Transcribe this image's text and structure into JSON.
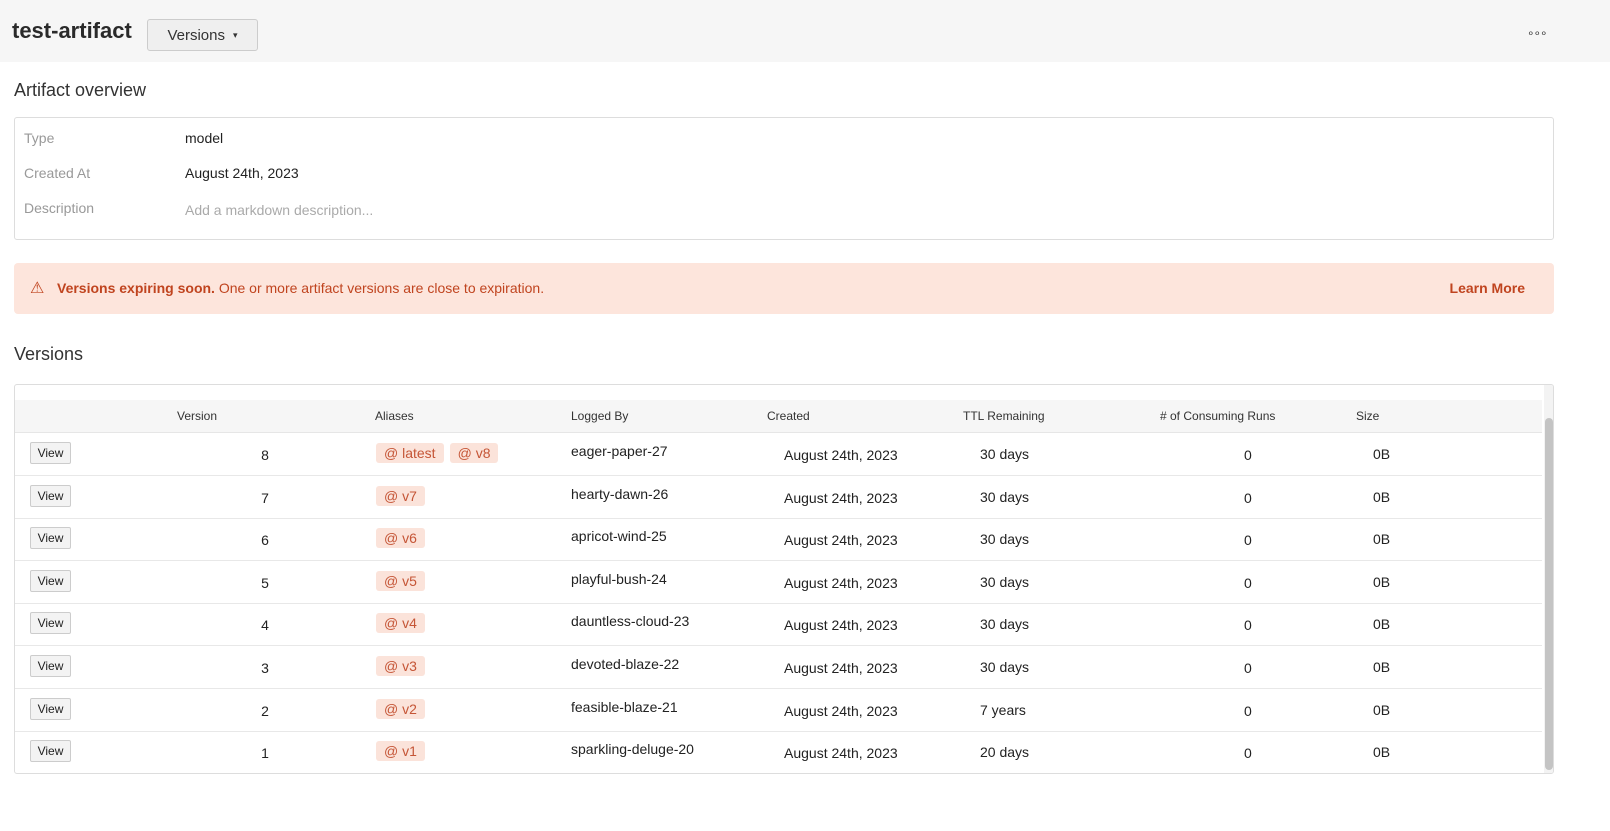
{
  "header": {
    "title": "test-artifact",
    "versions_button": "Versions",
    "caret": "▾",
    "more": "∘∘∘"
  },
  "overview": {
    "heading": "Artifact overview",
    "rows": [
      {
        "label": "Type",
        "value": "model"
      },
      {
        "label": "Created At",
        "value": "August 24th, 2023"
      },
      {
        "label": "Description",
        "placeholder": "Add a markdown description..."
      }
    ]
  },
  "banner": {
    "icon": "warning-triangle-icon",
    "glyph": "⚠",
    "title": "Versions expiring soon.",
    "message": "One or more artifact versions are close to expiration.",
    "link": "Learn More",
    "color": "#c0441f",
    "bg": "#fde5dc"
  },
  "versions": {
    "heading": "Versions",
    "columns": [
      "Version",
      "Aliases",
      "Logged By",
      "Created",
      "TTL Remaining",
      "# of Consuming Runs",
      "Size"
    ],
    "view_label": "View",
    "alias_prefix": "@",
    "rows": [
      {
        "version": "8",
        "aliases": [
          "latest",
          "v8"
        ],
        "logged_by": "eager-paper-27",
        "created": "August 24th, 2023",
        "ttl": "30 days",
        "runs": "0",
        "size": "0B"
      },
      {
        "version": "7",
        "aliases": [
          "v7"
        ],
        "logged_by": "hearty-dawn-26",
        "created": "August 24th, 2023",
        "ttl": "30 days",
        "runs": "0",
        "size": "0B"
      },
      {
        "version": "6",
        "aliases": [
          "v6"
        ],
        "logged_by": "apricot-wind-25",
        "created": "August 24th, 2023",
        "ttl": "30 days",
        "runs": "0",
        "size": "0B"
      },
      {
        "version": "5",
        "aliases": [
          "v5"
        ],
        "logged_by": "playful-bush-24",
        "created": "August 24th, 2023",
        "ttl": "30 days",
        "runs": "0",
        "size": "0B"
      },
      {
        "version": "4",
        "aliases": [
          "v4"
        ],
        "logged_by": "dauntless-cloud-23",
        "created": "August 24th, 2023",
        "ttl": "30 days",
        "runs": "0",
        "size": "0B"
      },
      {
        "version": "3",
        "aliases": [
          "v3"
        ],
        "logged_by": "devoted-blaze-22",
        "created": "August 24th, 2023",
        "ttl": "30 days",
        "runs": "0",
        "size": "0B"
      },
      {
        "version": "2",
        "aliases": [
          "v2"
        ],
        "logged_by": "feasible-blaze-21",
        "created": "August 24th, 2023",
        "ttl": "7 years",
        "runs": "0",
        "size": "0B"
      },
      {
        "version": "1",
        "aliases": [
          "v1"
        ],
        "logged_by": "sparkling-deluge-20",
        "created": "August 24th, 2023",
        "ttl": "20 days",
        "runs": "0",
        "size": "0B"
      }
    ]
  }
}
